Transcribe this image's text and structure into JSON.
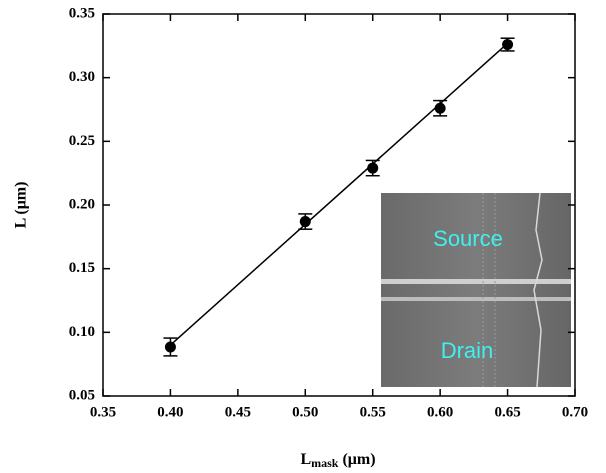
{
  "chart_data": {
    "type": "scatter",
    "xlabel": {
      "main": "L",
      "subscript": "mask",
      "suffix": " (μm)"
    },
    "ylabel": "L (μm)",
    "x": [
      0.4,
      0.5,
      0.55,
      0.6,
      0.65
    ],
    "series": [
      {
        "values": [
          0.0885,
          0.187,
          0.229,
          0.276,
          0.326
        ],
        "errors": [
          0.007,
          0.006,
          0.006,
          0.006,
          0.005
        ],
        "color": "#000000"
      }
    ],
    "fit": {
      "x": [
        0.4,
        0.65
      ],
      "values": [
        0.09,
        0.327
      ]
    },
    "xlim": [
      0.35,
      0.7
    ],
    "ylim": [
      0.05,
      0.35
    ],
    "xticks": [
      0.35,
      {
        "value": 0.4,
        "label": "0.40"
      },
      0.45,
      {
        "value": 0.5,
        "label": "0.50"
      },
      0.55,
      {
        "value": 0.6,
        "label": "0.60"
      },
      0.65,
      {
        "value": 0.7,
        "label": "0.70"
      }
    ],
    "yticks": [
      0.05,
      {
        "value": 0.1,
        "label": "0.10"
      },
      0.15,
      {
        "value": 0.2,
        "label": "0.20"
      },
      0.25,
      {
        "value": 0.3,
        "label": "0.30"
      },
      0.35
    ],
    "inset": {
      "top_label": "Source",
      "bottom_label": "Drain"
    }
  }
}
